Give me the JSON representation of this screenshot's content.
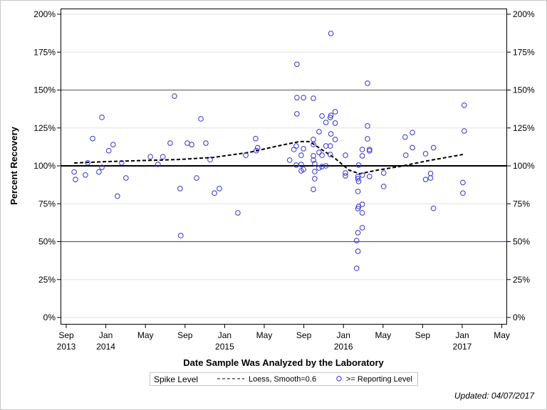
{
  "chart_data": {
    "type": "scatter",
    "title": "",
    "xlabel": "Date Sample Was Analyzed by the Laboratory",
    "ylabel": "Percent Recovery",
    "xlim": [
      "2013-08-15",
      "2017-05-20"
    ],
    "ylim": [
      0,
      200
    ],
    "x_ticks": [
      {
        "date": "2013-09-01",
        "label": "Sep",
        "year": "2013"
      },
      {
        "date": "2014-01-01",
        "label": "Jan",
        "year": "2014"
      },
      {
        "date": "2014-05-01",
        "label": "May",
        "year": ""
      },
      {
        "date": "2014-09-01",
        "label": "Sep",
        "year": ""
      },
      {
        "date": "2015-01-01",
        "label": "Jan",
        "year": "2015"
      },
      {
        "date": "2015-05-01",
        "label": "May",
        "year": ""
      },
      {
        "date": "2015-09-01",
        "label": "Sep",
        "year": ""
      },
      {
        "date": "2016-01-01",
        "label": "Jan",
        "year": "2016"
      },
      {
        "date": "2016-05-01",
        "label": "May",
        "year": ""
      },
      {
        "date": "2016-09-01",
        "label": "Sep",
        "year": ""
      },
      {
        "date": "2017-01-01",
        "label": "Jan",
        "year": "2017"
      },
      {
        "date": "2017-05-01",
        "label": "May",
        "year": ""
      }
    ],
    "y_ticks": [
      {
        "value": 0,
        "label": "0%"
      },
      {
        "value": 25,
        "label": "25%"
      },
      {
        "value": 50,
        "label": "50%"
      },
      {
        "value": 75,
        "label": "75%"
      },
      {
        "value": 100,
        "label": "100%"
      },
      {
        "value": 125,
        "label": "125%"
      },
      {
        "value": 150,
        "label": "150%"
      },
      {
        "value": 175,
        "label": "175%"
      },
      {
        "value": 200,
        "label": "200%"
      }
    ],
    "reference_lines": [
      {
        "value": 50,
        "color": "#3333cc"
      },
      {
        "value": 100,
        "color": "#000000"
      },
      {
        "value": 150,
        "color": "#555555"
      }
    ],
    "grid": true,
    "legend_position": "bottom",
    "series": [
      {
        "name": ">= Reporting Level",
        "type": "scatter",
        "color": "#3333cc",
        "points": [
          [
            "2013-09-25",
            96
          ],
          [
            "2013-09-29",
            91
          ],
          [
            "2013-10-29",
            94
          ],
          [
            "2013-11-06",
            102
          ],
          [
            "2013-11-21",
            118
          ],
          [
            "2013-12-10",
            96
          ],
          [
            "2013-12-19",
            99
          ],
          [
            "2013-12-19",
            132
          ],
          [
            "2014-01-10",
            110
          ],
          [
            "2014-01-23",
            114
          ],
          [
            "2014-02-06",
            80
          ],
          [
            "2014-02-19",
            102
          ],
          [
            "2014-03-02",
            92
          ],
          [
            "2014-05-16",
            106
          ],
          [
            "2014-06-09",
            101
          ],
          [
            "2014-06-24",
            106
          ],
          [
            "2014-07-16",
            115
          ],
          [
            "2014-07-29",
            146
          ],
          [
            "2014-08-16",
            85
          ],
          [
            "2014-08-18",
            54
          ],
          [
            "2014-09-08",
            115
          ],
          [
            "2014-09-21",
            114
          ],
          [
            "2014-10-06",
            92
          ],
          [
            "2014-10-19",
            131
          ],
          [
            "2014-11-04",
            115
          ],
          [
            "2014-11-17",
            104
          ],
          [
            "2014-11-30",
            82
          ],
          [
            "2014-12-15",
            85
          ],
          [
            "2015-02-11",
            69
          ],
          [
            "2015-03-05",
            107
          ],
          [
            "2015-04-05",
            118
          ],
          [
            "2015-04-07",
            110
          ],
          [
            "2015-04-11",
            112
          ],
          [
            "2015-07-18",
            103.8
          ],
          [
            "2015-08-01",
            110.8
          ],
          [
            "2015-08-08",
            113.1
          ],
          [
            "2015-08-08",
            100.5
          ],
          [
            "2015-08-10",
            167
          ],
          [
            "2015-08-10",
            145
          ],
          [
            "2015-08-10",
            134.3
          ],
          [
            "2015-08-23",
            107
          ],
          [
            "2015-08-23",
            100.9
          ],
          [
            "2015-08-23",
            96.7
          ],
          [
            "2015-08-30",
            111.3
          ],
          [
            "2015-08-30",
            145
          ],
          [
            "2015-08-30",
            97.7
          ],
          [
            "2015-09-30",
            144.6
          ],
          [
            "2015-09-30",
            117.4
          ],
          [
            "2015-09-30",
            114.1
          ],
          [
            "2015-09-30",
            106.6
          ],
          [
            "2015-09-30",
            103.8
          ],
          [
            "2015-09-30",
            84.5
          ],
          [
            "2015-10-04",
            101.4
          ],
          [
            "2015-10-04",
            96.2
          ],
          [
            "2015-10-04",
            91.5
          ],
          [
            "2015-10-17",
            122.5
          ],
          [
            "2015-10-17",
            108.9
          ],
          [
            "2015-10-17",
            98.6
          ],
          [
            "2015-10-26",
            132.9
          ],
          [
            "2015-10-26",
            107
          ],
          [
            "2015-10-26",
            99.5
          ],
          [
            "2015-11-08",
            128.6
          ],
          [
            "2015-11-08",
            113.1
          ],
          [
            "2015-11-08",
            100
          ],
          [
            "2015-11-21",
            131.9
          ],
          [
            "2015-11-21",
            113.1
          ],
          [
            "2015-11-21",
            107.5
          ],
          [
            "2015-11-23",
            187.3
          ],
          [
            "2015-11-23",
            133.3
          ],
          [
            "2015-11-23",
            121.1
          ],
          [
            "2015-12-06",
            135.7
          ],
          [
            "2015-12-06",
            128.2
          ],
          [
            "2015-12-06",
            117.4
          ],
          [
            "2016-01-07",
            107
          ],
          [
            "2016-01-07",
            95.3
          ],
          [
            "2016-01-07",
            93.4
          ],
          [
            "2016-02-11",
            50.7
          ],
          [
            "2016-02-11",
            32.4
          ],
          [
            "2016-02-15",
            93
          ],
          [
            "2016-02-15",
            91.5
          ],
          [
            "2016-02-15",
            83.1
          ],
          [
            "2016-02-15",
            71.8
          ],
          [
            "2016-02-15",
            55.9
          ],
          [
            "2016-02-15",
            43.7
          ],
          [
            "2016-02-17",
            100.5
          ],
          [
            "2016-02-17",
            89.7
          ],
          [
            "2016-02-17",
            73.2
          ],
          [
            "2016-02-28",
            110.8
          ],
          [
            "2016-02-28",
            106.6
          ],
          [
            "2016-02-28",
            93.9
          ],
          [
            "2016-02-28",
            74.6
          ],
          [
            "2016-02-28",
            69
          ],
          [
            "2016-02-28",
            59.2
          ],
          [
            "2016-03-14",
            154.5
          ],
          [
            "2016-03-14",
            126.3
          ],
          [
            "2016-03-14",
            117.8
          ],
          [
            "2016-03-20",
            110.8
          ],
          [
            "2016-03-20",
            109.9
          ],
          [
            "2016-03-20",
            93
          ],
          [
            "2016-05-03",
            95.3
          ],
          [
            "2016-05-03",
            86.4
          ],
          [
            "2016-07-08",
            119
          ],
          [
            "2016-07-10",
            107
          ],
          [
            "2016-07-30",
            122
          ],
          [
            "2016-07-30",
            112
          ],
          [
            "2016-09-10",
            108
          ],
          [
            "2016-09-10",
            91
          ],
          [
            "2016-09-25",
            95
          ],
          [
            "2016-09-25",
            92
          ],
          [
            "2016-10-04",
            112
          ],
          [
            "2016-10-04",
            72
          ],
          [
            "2017-01-03",
            89
          ],
          [
            "2017-01-03",
            82
          ],
          [
            "2017-01-07",
            140
          ],
          [
            "2017-01-07",
            123
          ]
        ]
      },
      {
        "name": "Loess, Smooth=0.6",
        "type": "line",
        "style": "dashed",
        "color": "#000000",
        "points": [
          [
            "2013-09-25",
            101.9
          ],
          [
            "2014-01-04",
            102.8
          ],
          [
            "2014-08-10",
            104.2
          ],
          [
            "2014-11-28",
            105.6
          ],
          [
            "2015-03-16",
            108.9
          ],
          [
            "2015-06-12",
            113.1
          ],
          [
            "2015-08-17",
            116
          ],
          [
            "2015-09-19",
            116
          ],
          [
            "2015-10-21",
            111.3
          ],
          [
            "2015-12-04",
            105.2
          ],
          [
            "2016-01-18",
            97.2
          ],
          [
            "2016-02-20",
            94.8
          ],
          [
            "2016-04-14",
            97.2
          ],
          [
            "2016-06-19",
            99.5
          ],
          [
            "2016-09-15",
            103.3
          ],
          [
            "2017-01-03",
            107.5
          ]
        ]
      }
    ]
  },
  "legend": {
    "title": "Spike Level",
    "line_label": "Loess, Smooth=0.6",
    "marker_label": ">= Reporting Level"
  },
  "footer": {
    "updated": "Updated: 04/07/2017"
  }
}
